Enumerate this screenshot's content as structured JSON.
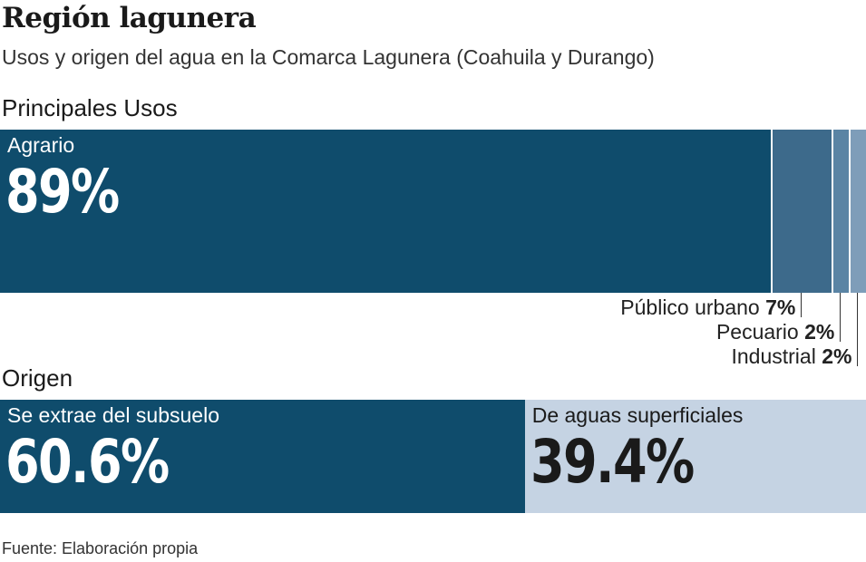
{
  "header": {
    "title": "Región lagunera",
    "subtitle": "Usos y origen del agua en la Comarca Lagunera (Coahuila y Durango)"
  },
  "source": "Fuente: Elaboración propia",
  "chart_data": [
    {
      "type": "bar",
      "orientation": "horizontal-stacked",
      "title": "Principales Usos",
      "categories": [
        "Agrario",
        "Público urbano",
        "Pecuario",
        "Industrial"
      ],
      "values": [
        89,
        7,
        2,
        2
      ],
      "value_labels": [
        "89%",
        "7%",
        "2%",
        "2%"
      ],
      "colors": [
        "#0f4c6c",
        "#3d6a8b",
        "#5a84a4",
        "#7e9db9"
      ],
      "unit": "%"
    },
    {
      "type": "bar",
      "orientation": "horizontal-stacked",
      "title": "Origen",
      "categories": [
        "Se extrae del subsuelo",
        "De aguas superficiales"
      ],
      "values": [
        60.6,
        39.4
      ],
      "value_labels": [
        "60.6%",
        "39.4%"
      ],
      "colors": [
        "#0f4c6c",
        "#c5d3e3"
      ],
      "unit": "%"
    }
  ]
}
